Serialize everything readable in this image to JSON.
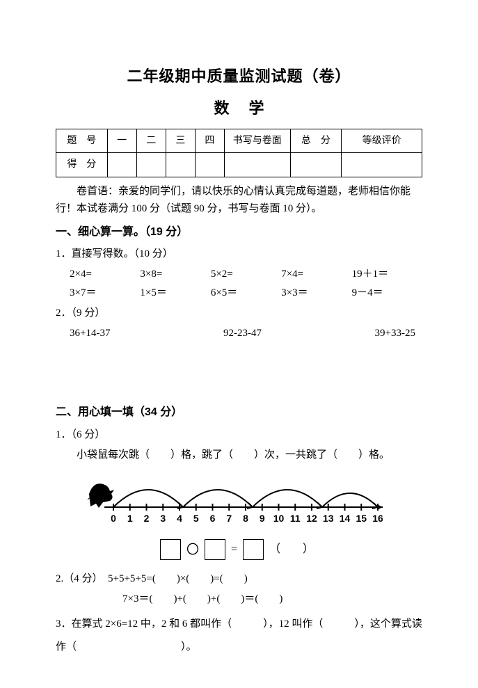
{
  "title": "二年级期中质量监测试题（卷）",
  "subtitle": "数学",
  "scoreTable": {
    "row1": [
      "题　号",
      "一",
      "二",
      "三",
      "四",
      "书写与卷面",
      "总　分",
      "等级评价"
    ],
    "row2Label": "得　分",
    "colWidths": [
      "14%",
      "8%",
      "8%",
      "8%",
      "8%",
      "18%",
      "14%",
      "22%"
    ]
  },
  "preface": "卷首语：亲爱的同学们，请以快乐的心情认真完成每道题，老师相信你能行！本试卷满分 100 分（试题 90 分，书写与卷面 10 分）。",
  "s1": {
    "heading": "一、细心算一算。（19 分）",
    "q1": {
      "label": "1．直接写得数。（10 分）",
      "rows": [
        [
          "2×4=",
          "3×8=",
          "5×2=",
          "7×4=",
          "19＋1＝"
        ],
        [
          "3×7＝",
          "1×5＝",
          "6×5＝",
          "3×3＝",
          "9－4＝"
        ]
      ]
    },
    "q2": {
      "label": "2．（9 分）",
      "items": [
        "36+14-37",
        "92-23-47",
        "39+33-25"
      ]
    }
  },
  "s2": {
    "heading": "二、用心填一填（34 分）",
    "q1": {
      "label": "1．（6 分）",
      "line": "小袋鼠每次跳（　　）格，跳了（　　）次，一共跳了（　　）格。",
      "diagram": {
        "ticks": [
          "0",
          "1",
          "2",
          "3",
          "4",
          "5",
          "6",
          "7",
          "8",
          "9",
          "10",
          "11",
          "12",
          "13",
          "14",
          "15",
          "16"
        ],
        "arcs_from": [
          0,
          4,
          8,
          12
        ],
        "arcs_span": 4,
        "line_color": "#000000",
        "tick_fontsize": 14,
        "tick_font_weight": "bold"
      },
      "eq_tail": "（　　）"
    },
    "q2": {
      "label": "2.（4 分）",
      "line1": "5+5+5+5=(　　)×(　　)=(　　)",
      "line2": "7×3＝(　　)+(　　)+(　　)＝(　　)"
    },
    "q3": "3．在算式 2×6=12 中，2 和 6 都叫作（　　　），12 叫作（　　　），这个算式读作（　　　　　　　　　　）。"
  }
}
